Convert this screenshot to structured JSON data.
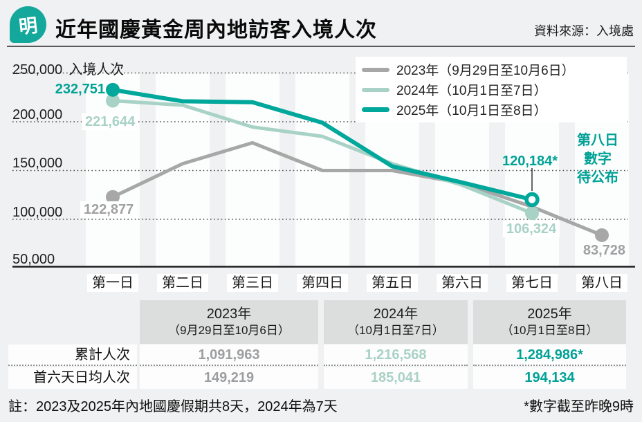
{
  "colors": {
    "teal": "#00a79b",
    "mint": "#a8d2c6",
    "gray": "#a7a7a7",
    "page_bg": "#f0f1f2",
    "stripe": "#fcfdfd",
    "table_header_bg": "#dcdddd"
  },
  "header": {
    "logo_char": "明",
    "title": "近年國慶黃金周內地訪客入境人次",
    "source": "資料來源：入境處"
  },
  "chart_data": {
    "type": "line",
    "title": "近年國慶黃金周內地訪客入境人次",
    "unit_label": "入境人次",
    "y_ticks": [
      "250,000",
      "200,000",
      "150,000",
      "100,000",
      "50,000"
    ],
    "ylim": [
      50000,
      250000
    ],
    "grid": "horizontal-dotted",
    "legend_position": "top-right",
    "categories": [
      "第一日",
      "第二日",
      "第三日",
      "第四日",
      "第五日",
      "第六日",
      "第七日",
      "第八日"
    ],
    "series": [
      {
        "name": "2023",
        "label": "2023年（9月29日至10月6日）",
        "color": "#a7a7a7",
        "stroke_width": 5,
        "values": [
          122877,
          157000,
          178437,
          150000,
          150000,
          137000,
          112921,
          83728
        ],
        "markers": {
          "start": "dot",
          "end": "dot"
        }
      },
      {
        "name": "2024",
        "label": "2024年（10月1日至7日）",
        "color": "#a8d2c6",
        "stroke_width": 5,
        "values": [
          221644,
          217000,
          194600,
          185000,
          157000,
          135000,
          106324
        ],
        "markers": {
          "start": "dot",
          "end": "dot"
        }
      },
      {
        "name": "2025",
        "label": "2025年（10月1日至8日）",
        "color": "#00a79b",
        "stroke_width": 6,
        "values": [
          232751,
          221000,
          220000,
          199000,
          154300,
          137751,
          120184
        ],
        "markers": {
          "start": "dot",
          "end": "ring"
        }
      }
    ],
    "point_labels": {
      "p2025d1": "232,751",
      "p2024d1": "221,644",
      "p2023d1": "122,877",
      "p2025d7": "120,184*",
      "p2024d7": "106,324",
      "p2023d8": "83,728"
    },
    "note_lines": [
      "第八日",
      "數字",
      "待公布"
    ]
  },
  "table": {
    "col_headers": [
      {
        "year": "2023年",
        "range": "（9月29日至10月6日）"
      },
      {
        "year": "2024年",
        "range": "（10月1日至7日）"
      },
      {
        "year": "2025年",
        "range": "（10月1日至8日）"
      }
    ],
    "rows": [
      {
        "label": "累計人次",
        "values": [
          "1,091,963",
          "1,216,568",
          "1,284,986*"
        ]
      },
      {
        "label": "首六天日均人次",
        "values": [
          "149,219",
          "185,041",
          "194,134"
        ]
      }
    ]
  },
  "footnotes": {
    "left": "註：2023及2025年內地國慶假期共8天，2024年為7天",
    "right": "*數字截至昨晚9時"
  }
}
